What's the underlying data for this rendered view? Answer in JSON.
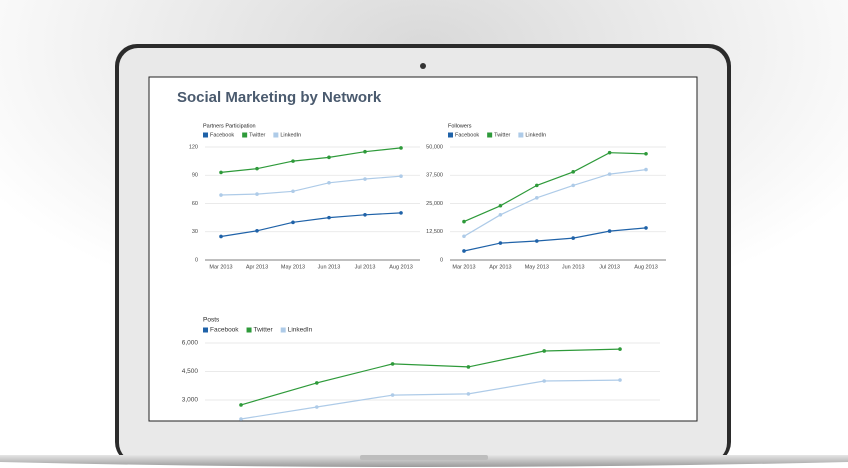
{
  "title": "Social Marketing by Network",
  "chart_data": [
    {
      "type": "line",
      "title": "Partners Participation",
      "categories": [
        "Mar 2013",
        "Apr 2013",
        "May 2013",
        "Jun 2013",
        "Jul 2013",
        "Aug 2013"
      ],
      "series": [
        {
          "name": "Facebook",
          "color": "#1f62a8",
          "values": [
            25,
            31,
            40,
            45,
            48,
            50
          ]
        },
        {
          "name": "Twitter",
          "color": "#2e9a3a",
          "values": [
            93,
            97,
            105,
            109,
            115,
            119
          ]
        },
        {
          "name": "LinkedIn",
          "color": "#aecbe8",
          "values": [
            69,
            70,
            73,
            82,
            86,
            89
          ]
        }
      ],
      "ylim": [
        0,
        120
      ],
      "yticks": [
        0,
        30,
        60,
        90,
        120
      ],
      "grid": true
    },
    {
      "type": "line",
      "title": "Followers",
      "categories": [
        "Mar 2013",
        "Apr 2013",
        "May 2013",
        "Jun 2013",
        "Jul 2013",
        "Aug 2013"
      ],
      "series": [
        {
          "name": "Facebook",
          "color": "#1f62a8",
          "values": [
            4000,
            7500,
            8400,
            9700,
            12800,
            14200
          ]
        },
        {
          "name": "Twitter",
          "color": "#2e9a3a",
          "values": [
            17000,
            24000,
            33000,
            39000,
            47500,
            47000
          ]
        },
        {
          "name": "LinkedIn",
          "color": "#aecbe8",
          "values": [
            10500,
            20000,
            27500,
            33000,
            38000,
            40000
          ]
        }
      ],
      "ylim": [
        0,
        50000
      ],
      "yticks": [
        0,
        {
          "value": 12500,
          "label": "12,500"
        },
        {
          "value": 25000,
          "label": "25,000"
        },
        {
          "value": 37500,
          "label": "37,500"
        },
        {
          "value": 50000,
          "label": "50,000"
        }
      ],
      "grid": true
    },
    {
      "type": "line",
      "title": "Posts",
      "categories": [
        null,
        null,
        null,
        null,
        null,
        null
      ],
      "series": [
        {
          "name": "Facebook",
          "color": "#1f62a8",
          "values": [
            null,
            null,
            null,
            null,
            null,
            null
          ]
        },
        {
          "name": "Twitter",
          "color": "#2e9a3a",
          "values": [
            2740,
            3900,
            4900,
            4740,
            5580,
            5680
          ]
        },
        {
          "name": "LinkedIn",
          "color": "#aecbe8",
          "values": [
            2000,
            2630,
            3260,
            3320,
            4000,
            4050
          ]
        }
      ],
      "ylim": [
        2000,
        6000
      ],
      "yticks": [
        {
          "value": 3000,
          "label": "3,000"
        },
        {
          "value": 4500,
          "label": "4,500"
        },
        {
          "value": 6000,
          "label": "6,000"
        }
      ],
      "grid": true
    }
  ]
}
